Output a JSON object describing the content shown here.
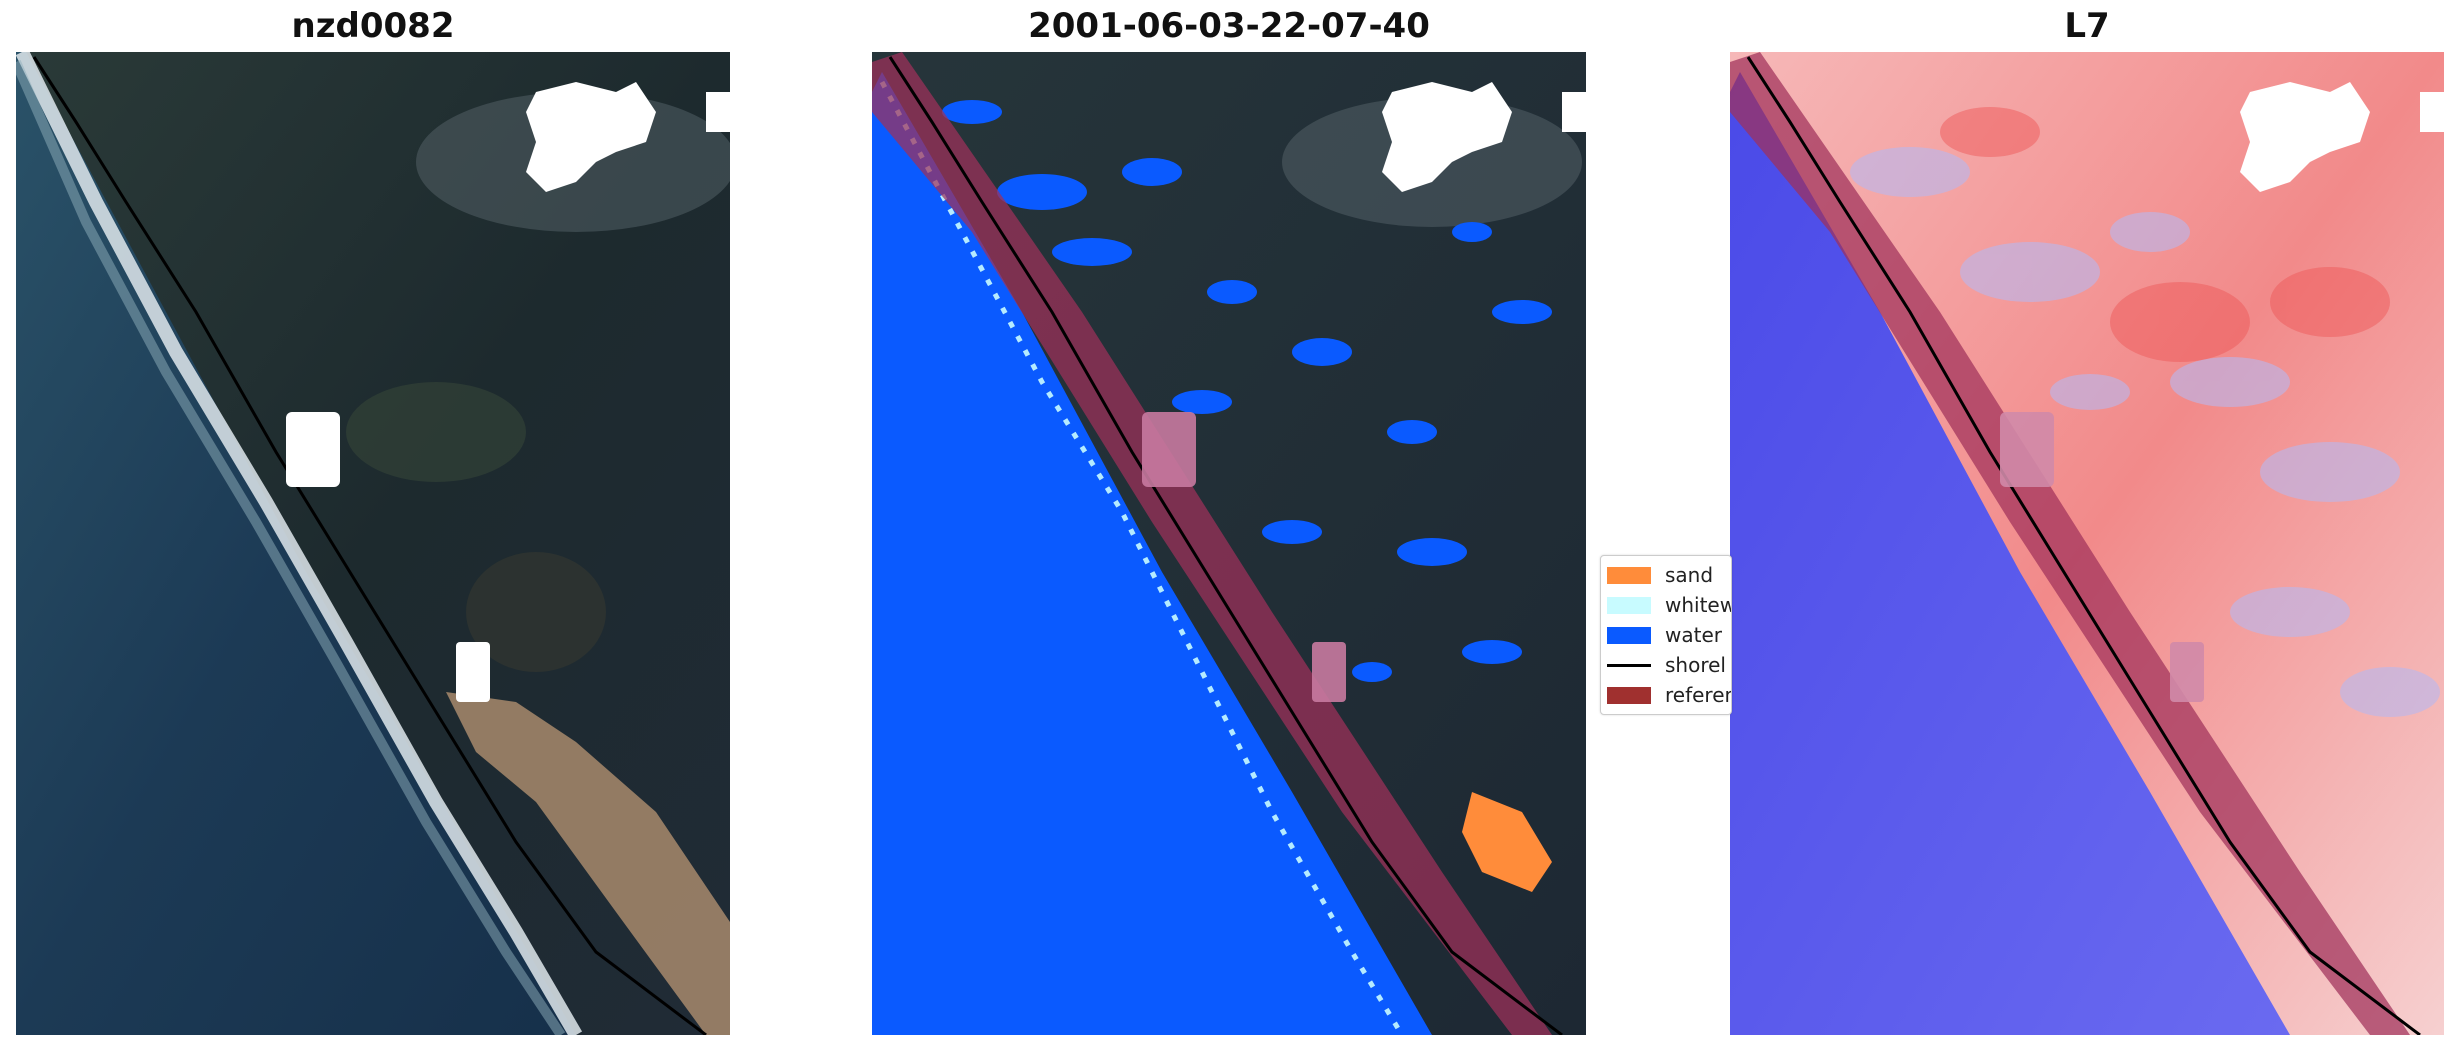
{
  "panels": [
    {
      "title": "nzd0082"
    },
    {
      "title": "2001-06-03-22-07-40"
    },
    {
      "title": "L7"
    }
  ],
  "legend": {
    "items": [
      {
        "label": "sand",
        "color": "#ff8c3a",
        "kind": "patch"
      },
      {
        "label": "whitew",
        "color": "#c8fbff",
        "kind": "patch"
      },
      {
        "label": "water",
        "color": "#0a5aff",
        "kind": "patch"
      },
      {
        "label": "shorel",
        "color": "#000000",
        "kind": "line"
      },
      {
        "label": "referen",
        "color": "#a0302f",
        "kind": "patch"
      }
    ]
  },
  "colors": {
    "ocean": "#1c3a52",
    "land": "#1e2a33",
    "beach_sand": "#b89878",
    "surf": "#e8eef0",
    "cloud": "#ffffff",
    "water_class": "#0a5aff",
    "reference_buffer": "#a0305a",
    "index_water": "#5555ee",
    "index_land": "#f4a0a0"
  }
}
